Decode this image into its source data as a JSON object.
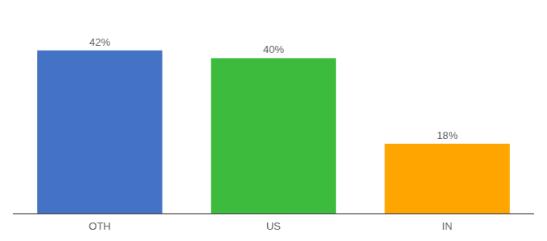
{
  "chart_data": {
    "type": "bar",
    "categories": [
      "OTH",
      "US",
      "IN"
    ],
    "values": [
      42,
      40,
      18
    ],
    "value_labels": [
      "42%",
      "40%",
      "18%"
    ],
    "data_labels": true,
    "colors": [
      "#4472c4",
      "#3dbb3d",
      "#ffa500"
    ],
    "ylim": [
      0,
      50
    ],
    "tick_labels": "x"
  }
}
